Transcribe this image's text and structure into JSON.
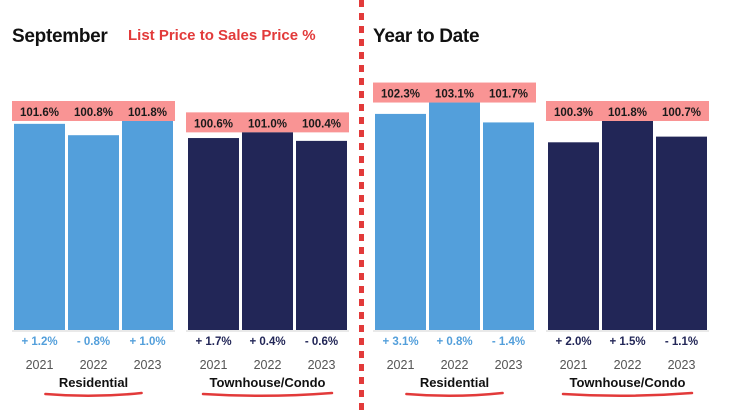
{
  "colors": {
    "residential": "#539fdb",
    "townhouse": "#222657",
    "label_bg": "#f99494",
    "accent": "#e23a3a",
    "res_change": "#539fdb",
    "th_change": "#222657"
  },
  "subtitle": "List Price to Sales Price %",
  "chart_data": [
    {
      "type": "bar",
      "title": "September",
      "categories": [
        "2021",
        "2022",
        "2023"
      ],
      "series": [
        {
          "name": "Residential",
          "values": [
            101.6,
            100.8,
            101.8
          ],
          "changes": [
            "+ 1.2%",
            "- 0.8%",
            "+ 1.0%"
          ]
        },
        {
          "name": "Townhouse/Condo",
          "values": [
            100.6,
            101.0,
            100.4
          ],
          "changes": [
            "+ 1.7%",
            "+ 0.4%",
            "- 0.6%"
          ]
        }
      ]
    },
    {
      "type": "bar",
      "title": "Year to Date",
      "categories": [
        "2021",
        "2022",
        "2023"
      ],
      "series": [
        {
          "name": "Residential",
          "values": [
            102.3,
            103.1,
            101.7
          ],
          "changes": [
            "+ 3.1%",
            "+ 0.8%",
            "- 1.4%"
          ]
        },
        {
          "name": "Townhouse/Condo",
          "values": [
            100.3,
            101.8,
            100.7
          ],
          "changes": [
            "+ 2.0%",
            "+ 1.5%",
            "- 1.1%"
          ]
        }
      ]
    }
  ]
}
